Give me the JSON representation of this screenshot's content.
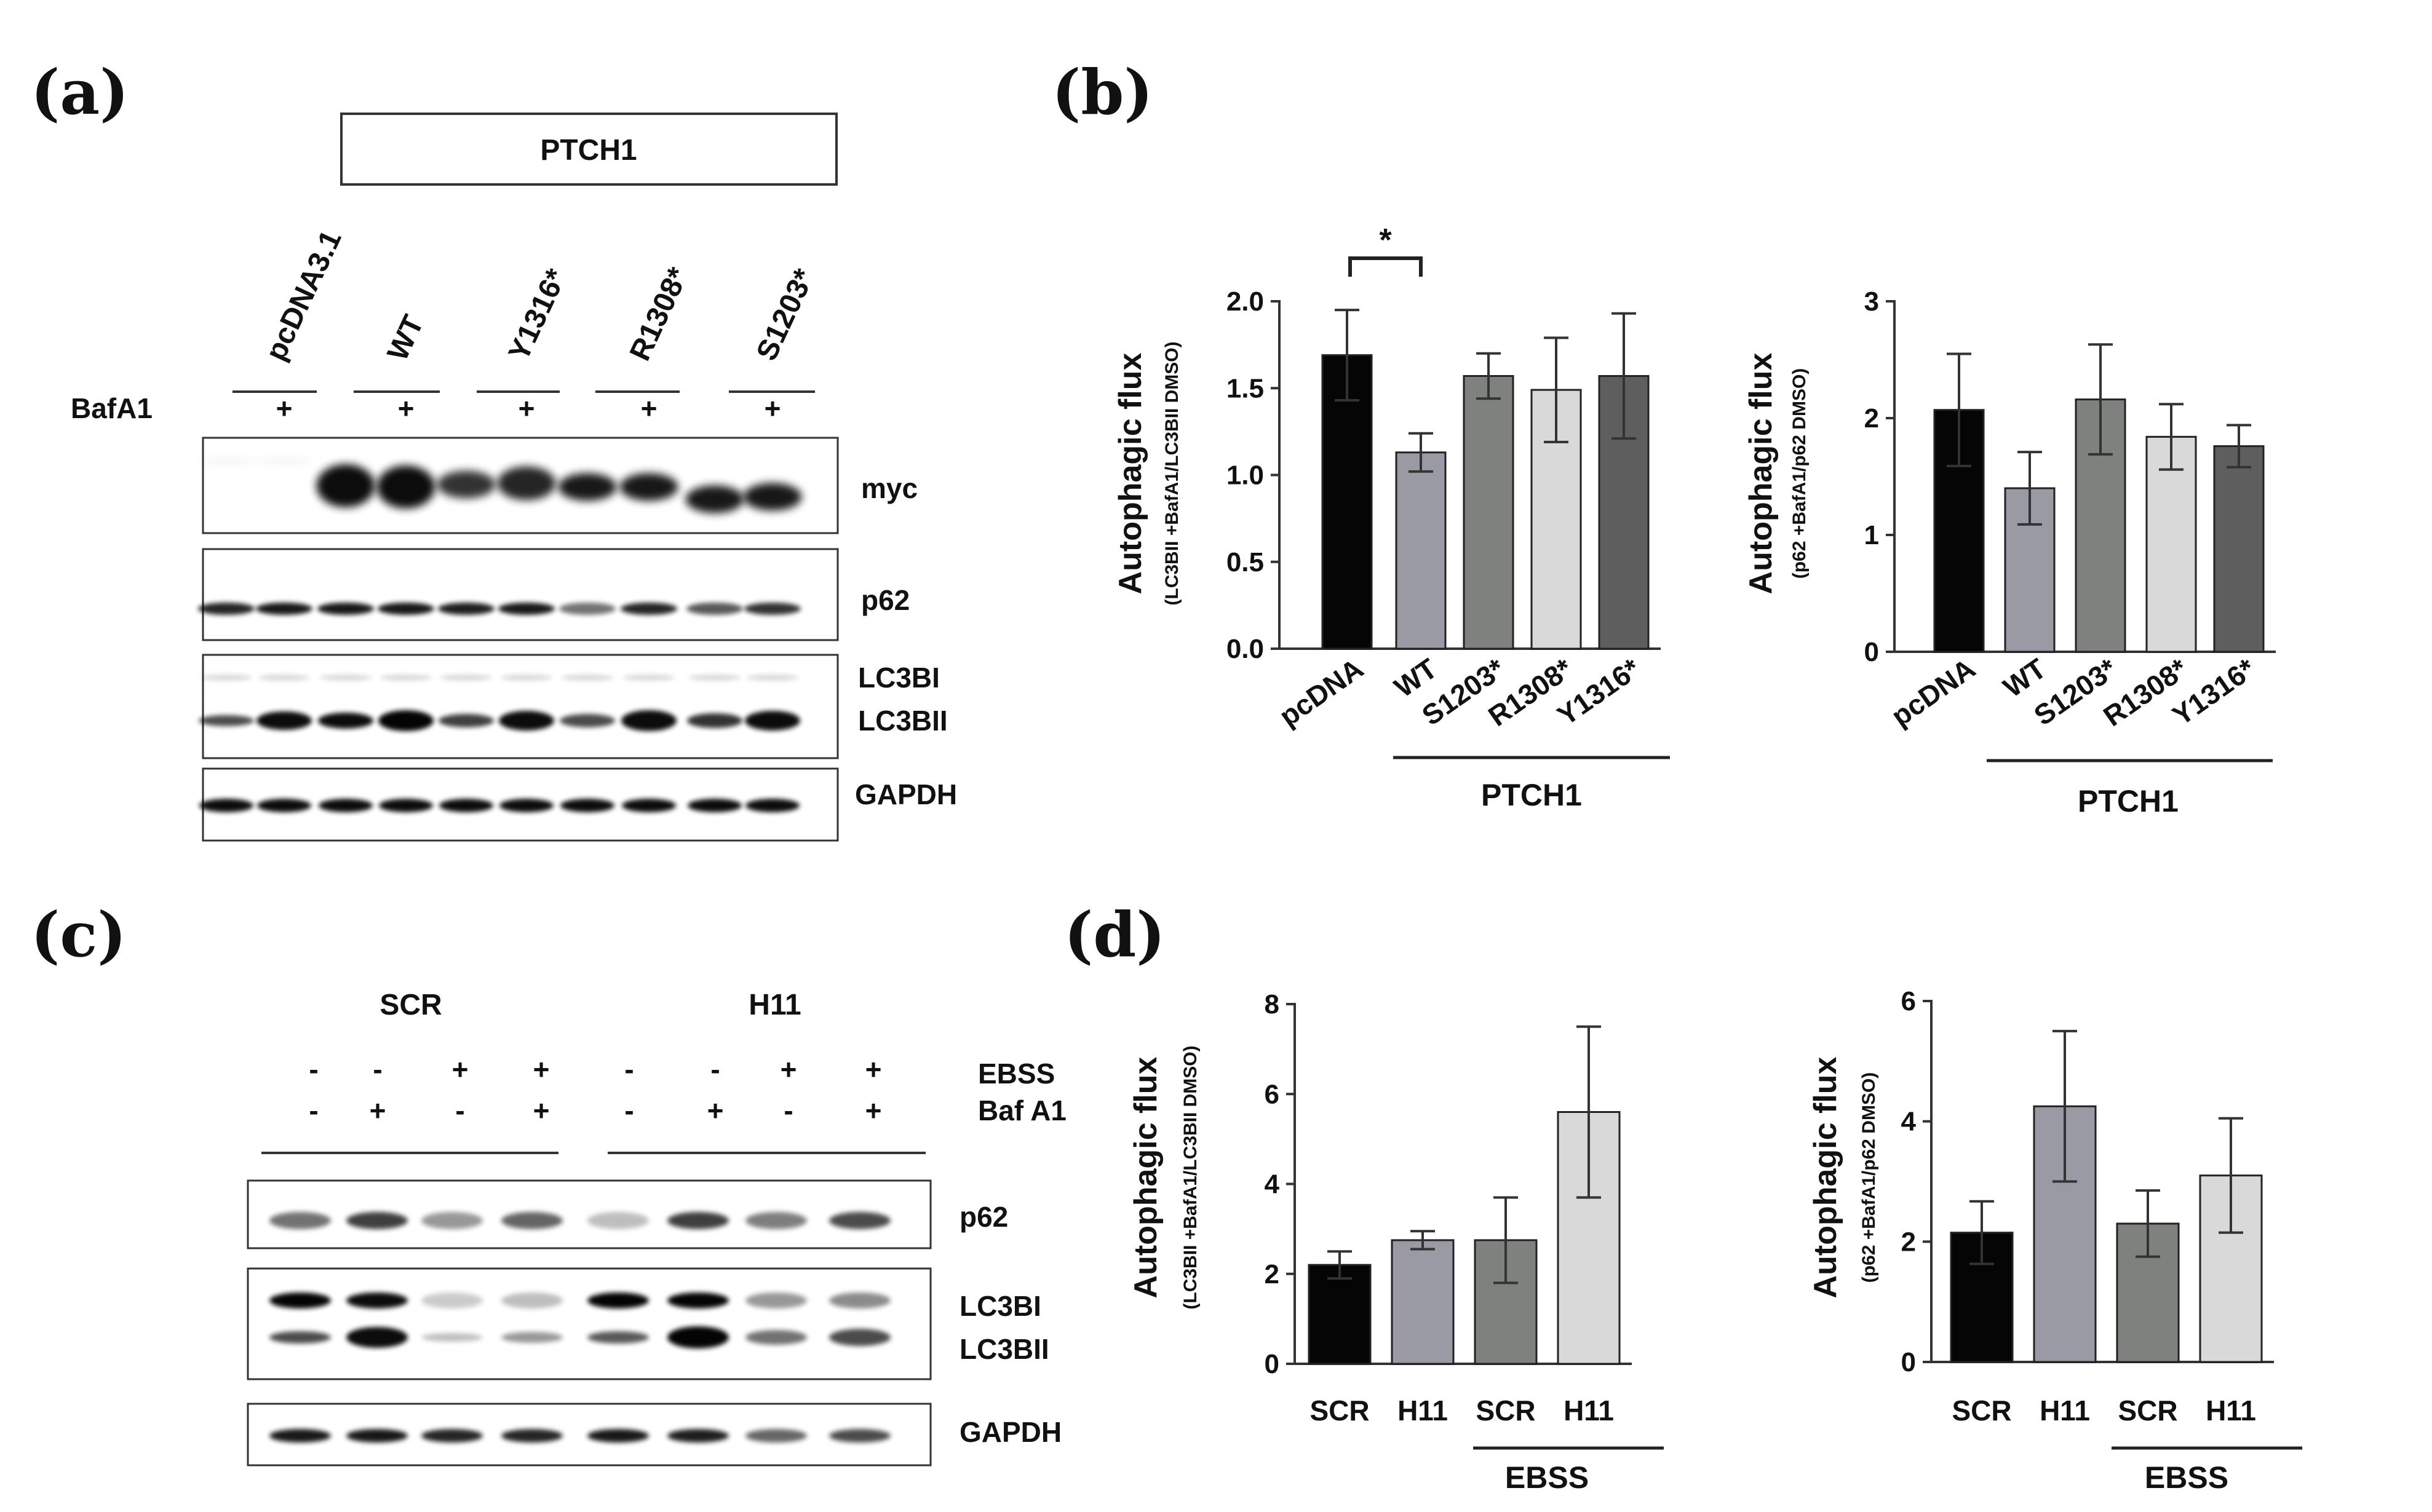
{
  "panels": {
    "a": "(a)",
    "b": "(b)",
    "c": "(c)",
    "d": "(d)"
  },
  "blot_a": {
    "header": "PTCH1",
    "lanes": [
      "pcDNA3.1",
      "WT",
      "Y1316*",
      "R1308*",
      "S1203*"
    ],
    "treatment_label": "BafA1",
    "treatment_plus": "+",
    "rows": {
      "myc": "myc",
      "p62": "p62",
      "lc3bi": "LC3BI",
      "lc3bii": "LC3BII",
      "gapdh": "GAPDH"
    }
  },
  "blot_c": {
    "groups": [
      "SCR",
      "H11"
    ],
    "ebss_label": "EBSS",
    "baf_label": "Baf A1",
    "ebss_signs": [
      "-",
      "-",
      "+",
      "+",
      "-",
      "-",
      "+",
      "+"
    ],
    "baf_signs": [
      "-",
      "+",
      "-",
      "+",
      "-",
      "+",
      "-",
      "+"
    ],
    "rows": {
      "p62": "p62",
      "lc3bi": "LC3BI",
      "lc3bii": "LC3BII",
      "gapdh": "GAPDH"
    }
  },
  "significance": "*",
  "chart_data": [
    {
      "type": "bar",
      "panel": "b",
      "ylabel": "Autophagic flux",
      "ylabel_sub": "(LC3BII +BafA1/LC3BII DMSO)",
      "categories": [
        "pcDNA",
        "WT",
        "S1203*",
        "R1308*",
        "Y1316*"
      ],
      "values": [
        1.69,
        1.13,
        1.57,
        1.49,
        1.57
      ],
      "errors": [
        0.26,
        0.11,
        0.13,
        0.3,
        0.36
      ],
      "colors": [
        "#050505",
        "#9a9aa4",
        "#7f817f",
        "#d9d9d9",
        "#5e5e5e"
      ],
      "ylim": [
        0,
        2.0
      ],
      "yticks": [
        "0.0",
        "0.5",
        "1.0",
        "1.5",
        "2.0"
      ],
      "group_label": "PTCH1",
      "significance": [
        "pcDNA",
        "WT"
      ]
    },
    {
      "type": "bar",
      "panel": "b",
      "ylabel": "Autophagic flux",
      "ylabel_sub": "(p62 +BafA1/p62 DMSO)",
      "categories": [
        "pcDNA",
        "WT",
        "S1203*",
        "R1308*",
        "Y1316*"
      ],
      "values": [
        2.07,
        1.4,
        2.16,
        1.84,
        1.76
      ],
      "errors": [
        0.48,
        0.31,
        0.47,
        0.28,
        0.18
      ],
      "colors": [
        "#050505",
        "#9a9aa4",
        "#7f817f",
        "#d9d9d9",
        "#5e5e5e"
      ],
      "ylim": [
        0,
        3
      ],
      "yticks": [
        "0",
        "1",
        "2",
        "3"
      ],
      "group_label": "PTCH1"
    },
    {
      "type": "bar",
      "panel": "d",
      "ylabel": "Autophagic flux",
      "ylabel_sub": "(LC3BII +BafA1/LC3BII DMSO)",
      "categories": [
        "SCR",
        "H11",
        "SCR",
        "H11"
      ],
      "values": [
        2.2,
        2.75,
        2.75,
        5.6
      ],
      "errors": [
        0.3,
        0.2,
        0.95,
        1.9
      ],
      "colors": [
        "#050505",
        "#9a9aa4",
        "#7f817f",
        "#d9d9d9"
      ],
      "ylim": [
        0,
        8
      ],
      "yticks": [
        "0",
        "2",
        "4",
        "6",
        "8"
      ],
      "group_label": "EBSS"
    },
    {
      "type": "bar",
      "panel": "d",
      "ylabel": "Autophagic flux",
      "ylabel_sub": "(p62 +BafA1/p62 DMSO)",
      "categories": [
        "SCR",
        "H11",
        "SCR",
        "H11"
      ],
      "values": [
        2.15,
        4.25,
        2.3,
        3.1
      ],
      "errors": [
        0.52,
        1.25,
        0.55,
        0.95
      ],
      "colors": [
        "#050505",
        "#9a9aa4",
        "#7f817f",
        "#d9d9d9"
      ],
      "ylim": [
        0,
        6
      ],
      "yticks": [
        "0",
        "2",
        "4",
        "6"
      ],
      "group_label": "EBSS"
    }
  ]
}
